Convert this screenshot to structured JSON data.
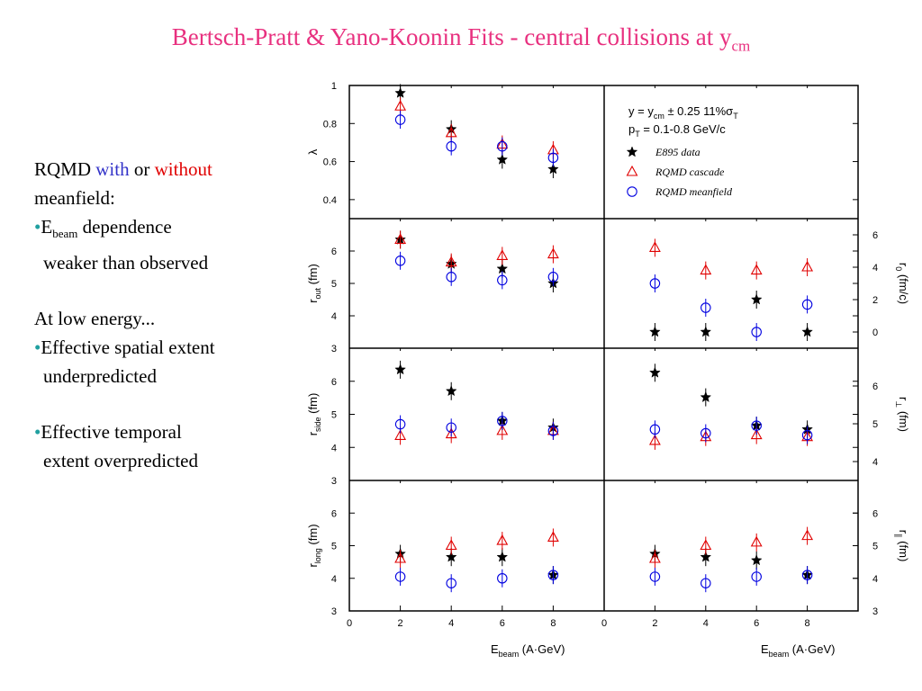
{
  "slide": {
    "title_main": "Bertsch-Pratt & Yano-Koonin Fits - central collisions at y",
    "title_sub": "cm"
  },
  "notes": {
    "line1_a": "RQMD ",
    "line1_with": "with",
    "line1_or": " or ",
    "line1_without": "without",
    "line2": "meanfield:",
    "bullet": "•",
    "b1_E": "E",
    "b1_beam": "beam",
    "b1_rest": " dependence",
    "b1_line2": "weaker than observed",
    "low_energy": "At low energy...",
    "b2_line1": "Effective spatial extent",
    "b2_line2": "underpredicted",
    "b3_line1": "Effective temporal",
    "b3_line2": "extent overpredicted"
  },
  "chart_data": {
    "type": "scatter",
    "legend": {
      "cut1": "y = y",
      "cut1_sub": "cm",
      "cut1_rest": " ± 0.25   11%σ",
      "cut1_sub2": "T",
      "cut2": "p",
      "cut2_sub": "T",
      "cut2_rest": " = 0.1-0.8 GeV/c",
      "series_names": [
        "E895 data",
        "RQMD cascade",
        "RQMD meanfield"
      ],
      "position": "top-right"
    },
    "colors": {
      "data": "#000000",
      "cascade": "#e00000",
      "meanfield": "#0000e0"
    },
    "x": [
      2,
      4,
      6,
      8
    ],
    "xlim": [
      0,
      10
    ],
    "xticks": [
      "0",
      "2",
      "4",
      "6",
      "8"
    ],
    "xlabel_left": "E",
    "xlabel_sub": "beam",
    "xlabel_rest": " (A·GeV)",
    "xlabel_right": "E",
    "xlabel_right_sub": "beam",
    "xlabel_right_rest": " (A·GeV)",
    "panels": [
      {
        "id": "lambda",
        "side": "left",
        "ylabel": "λ",
        "ylim": [
          0.3,
          1.0
        ],
        "yticks": [
          "1",
          "0.8",
          "0.6",
          "0.4"
        ],
        "series": [
          {
            "name": "E895 data",
            "values": [
              0.96,
              0.77,
              0.61,
              0.56
            ]
          },
          {
            "name": "RQMD cascade",
            "values": [
              0.89,
              0.75,
              0.69,
              0.66
            ]
          },
          {
            "name": "RQMD meanfield",
            "values": [
              0.82,
              0.68,
              0.68,
              0.62
            ]
          }
        ]
      },
      {
        "id": "rout",
        "side": "left",
        "ylabel": "r",
        "ylabel_sub": "out",
        "ylabel_rest": " (fm)",
        "ylim": [
          3,
          7
        ],
        "yticks": [
          "6",
          "5",
          "4",
          "3"
        ],
        "series": [
          {
            "name": "E895 data",
            "values": [
              6.35,
              5.6,
              5.45,
              5.0
            ]
          },
          {
            "name": "RQMD cascade",
            "values": [
              6.35,
              5.65,
              5.85,
              5.9
            ]
          },
          {
            "name": "RQMD meanfield",
            "values": [
              5.7,
              5.2,
              5.1,
              5.2
            ]
          }
        ]
      },
      {
        "id": "rside",
        "side": "left",
        "ylabel": "r",
        "ylabel_sub": "side",
        "ylabel_rest": " (fm)",
        "ylim": [
          3,
          7
        ],
        "yticks": [
          "6",
          "5",
          "4",
          "3"
        ],
        "series": [
          {
            "name": "E895 data",
            "values": [
              6.35,
              5.7,
              4.8,
              4.6
            ]
          },
          {
            "name": "RQMD cascade",
            "values": [
              4.35,
              4.4,
              4.5,
              4.5
            ]
          },
          {
            "name": "RQMD meanfield",
            "values": [
              4.7,
              4.6,
              4.8,
              4.5
            ]
          }
        ]
      },
      {
        "id": "rlong",
        "side": "left",
        "ylabel": "r",
        "ylabel_sub": "long",
        "ylabel_rest": " (fm)",
        "ylim": [
          3,
          7
        ],
        "yticks": [
          "6",
          "5",
          "4",
          "3"
        ],
        "series": [
          {
            "name": "E895 data",
            "values": [
              4.75,
              4.65,
              4.65,
              4.1
            ]
          },
          {
            "name": "RQMD cascade",
            "values": [
              4.6,
              5.0,
              5.15,
              5.25
            ]
          },
          {
            "name": "RQMD meanfield",
            "values": [
              4.05,
              3.85,
              4.0,
              4.1
            ]
          }
        ]
      },
      {
        "id": "r0",
        "side": "right",
        "ylabel": "r",
        "ylabel_sub": "0",
        "ylabel_rest": " (fm/c)",
        "ylim": [
          -1,
          7
        ],
        "yticks": [
          "6",
          "4",
          "2",
          "0"
        ],
        "series": [
          {
            "name": "E895 data",
            "values": [
              0,
              0,
              2.0,
              0
            ]
          },
          {
            "name": "RQMD cascade",
            "values": [
              5.2,
              3.8,
              3.8,
              4.0
            ]
          },
          {
            "name": "RQMD meanfield",
            "values": [
              3.0,
              1.5,
              0,
              1.7
            ]
          }
        ]
      },
      {
        "id": "rperp",
        "side": "right",
        "ylabel": "r",
        "ylabel_sub": "⊥",
        "ylabel_rest": " (fm)",
        "ylim": [
          3.5,
          7
        ],
        "yticks": [
          "6",
          "5",
          "4"
        ],
        "series": [
          {
            "name": "E895 data",
            "values": [
              6.35,
              5.7,
              4.95,
              4.85
            ]
          },
          {
            "name": "RQMD cascade",
            "values": [
              4.55,
              4.65,
              4.7,
              4.65
            ]
          },
          {
            "name": "RQMD meanfield",
            "values": [
              4.85,
              4.75,
              4.95,
              4.7
            ]
          }
        ]
      },
      {
        "id": "rpar",
        "side": "right",
        "ylabel": "r",
        "ylabel_sub": "∥",
        "ylabel_rest": " (fm)",
        "ylim": [
          3,
          7
        ],
        "yticks": [
          "6",
          "5",
          "4",
          "3"
        ],
        "series": [
          {
            "name": "E895 data",
            "values": [
              4.75,
              4.65,
              4.55,
              4.1
            ]
          },
          {
            "name": "RQMD cascade",
            "values": [
              4.6,
              5.0,
              5.1,
              5.3
            ]
          },
          {
            "name": "RQMD meanfield",
            "values": [
              4.05,
              3.85,
              4.05,
              4.1
            ]
          }
        ]
      }
    ]
  }
}
